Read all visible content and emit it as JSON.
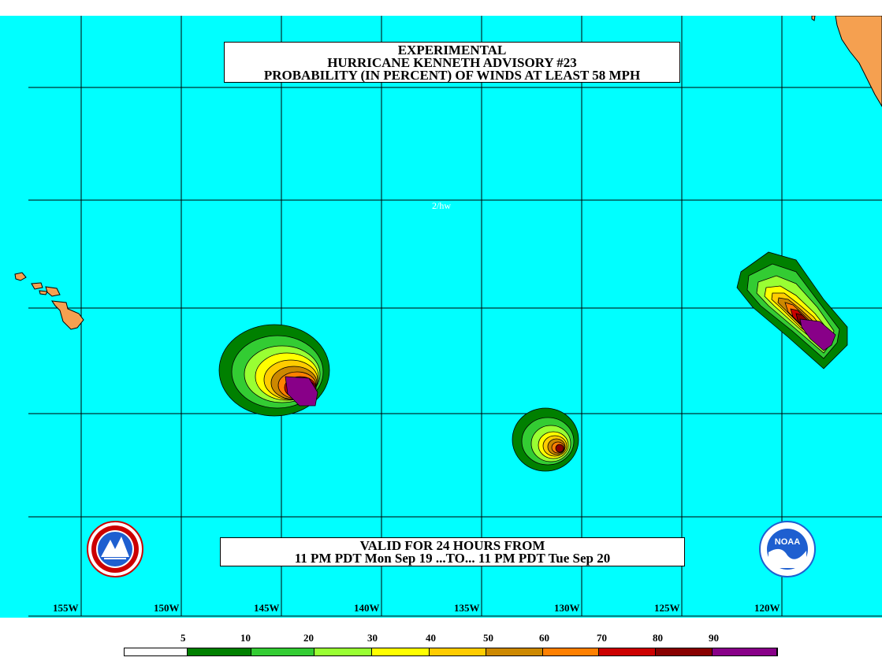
{
  "title": {
    "line1": "EXPERIMENTAL",
    "line2": "HURRICANE KENNETH ADVISORY #23",
    "line3": "PROBABILITY (IN PERCENT) OF WINDS AT LEAST 58 MPH"
  },
  "valid": {
    "line1": "VALID FOR 24 HOURS FROM",
    "line2": "11 PM PDT Mon Sep 19 ...TO... 11 PM PDT Tue Sep 20"
  },
  "small_label": "2/hw",
  "longitude_labels": [
    "155W",
    "150W",
    "145W",
    "140W",
    "135W",
    "130W",
    "125W",
    "120W"
  ],
  "legend": {
    "values": [
      "5",
      "10",
      "20",
      "30",
      "40",
      "50",
      "60",
      "70",
      "80",
      "90"
    ],
    "colors": [
      "#ffffff",
      "#008000",
      "#33cc33",
      "#99ff33",
      "#ffff00",
      "#ffcc00",
      "#cc8800",
      "#ff8000",
      "#cc0000",
      "#880000",
      "#880088"
    ]
  },
  "colors": {
    "ocean": "#00ffff",
    "land": "#f5a050",
    "grid": "#000000"
  },
  "logos": [
    "nws-logo",
    "noaa-logo"
  ],
  "noaa_text": "NOAA"
}
